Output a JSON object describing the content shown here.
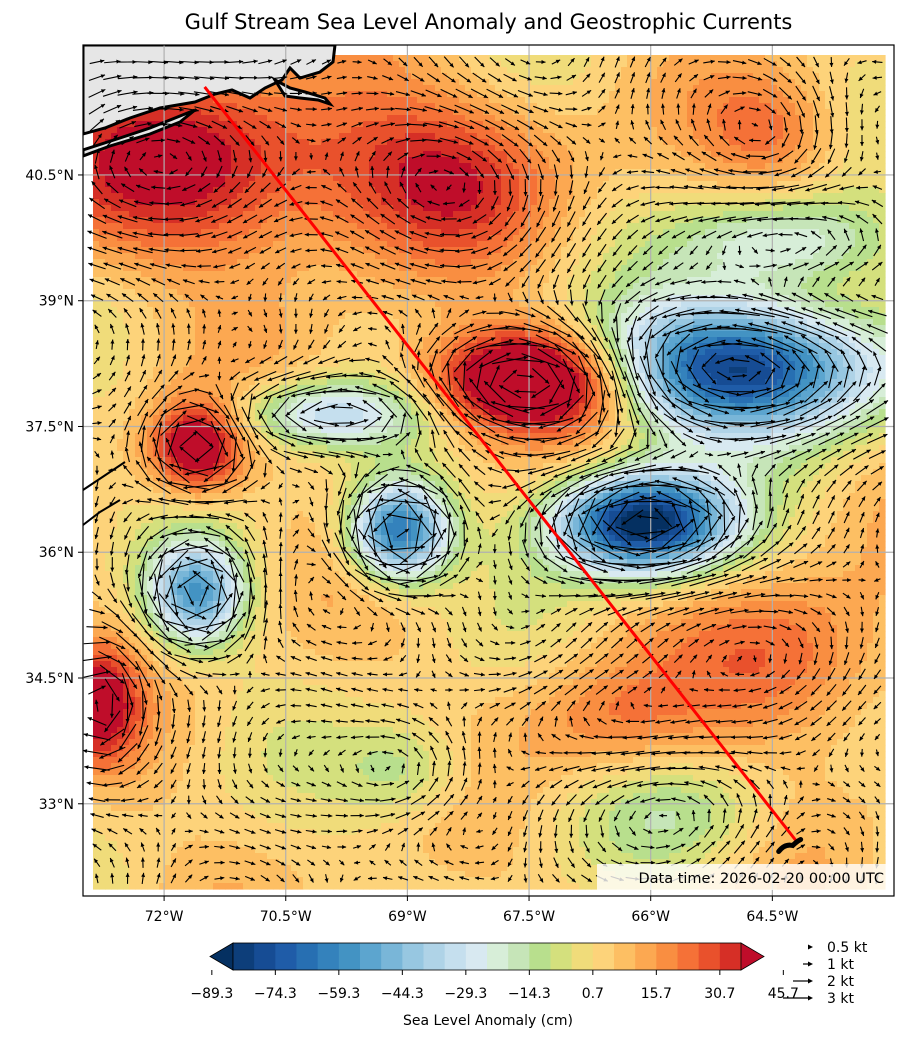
{
  "title": "Gulf Stream Sea Level Anomaly and Geostrophic Currents",
  "data_time": "Data time: 2026-02-20 00:00 UTC",
  "map_extent": {
    "lon_min": -73.0,
    "lon_max": -63.0,
    "lat_min": 31.9,
    "lat_max": 42.05
  },
  "lon_ticks": [
    {
      "value": -72.0,
      "label": "72°W"
    },
    {
      "value": -70.5,
      "label": "70.5°W"
    },
    {
      "value": -69.0,
      "label": "69°W"
    },
    {
      "value": -67.5,
      "label": "67.5°W"
    },
    {
      "value": -66.0,
      "label": "66°W"
    },
    {
      "value": -64.5,
      "label": "64.5°W"
    }
  ],
  "lat_ticks": [
    {
      "value": 40.5,
      "label": "40.5°N"
    },
    {
      "value": 39.0,
      "label": "39°N"
    },
    {
      "value": 37.5,
      "label": "37.5°N"
    },
    {
      "value": 36.0,
      "label": "36°N"
    },
    {
      "value": 34.5,
      "label": "34.5°N"
    },
    {
      "value": 33.0,
      "label": "33°N"
    }
  ],
  "colorbar": {
    "label": "Sea Level Anomaly (cm)",
    "min": -89.3,
    "max": 50.7,
    "step": 5,
    "tick_labels": [
      {
        "value": -89.3,
        "label": "−89.3"
      },
      {
        "value": -74.3,
        "label": "−74.3"
      },
      {
        "value": -59.3,
        "label": "−59.3"
      },
      {
        "value": -44.3,
        "label": "−44.3"
      },
      {
        "value": -29.3,
        "label": "−29.3"
      },
      {
        "value": -14.3,
        "label": "−14.3"
      },
      {
        "value": 0.7,
        "label": "0.7"
      },
      {
        "value": 15.7,
        "label": "15.7"
      },
      {
        "value": 30.7,
        "label": "30.7"
      },
      {
        "value": 45.7,
        "label": "45.7"
      }
    ],
    "colors": [
      "#053061",
      "#0d3e7a",
      "#164c94",
      "#1f5ca8",
      "#276fb2",
      "#3482bc",
      "#4393c3",
      "#5ca5cf",
      "#79b6d8",
      "#97c7e1",
      "#afd3e7",
      "#c5dfee",
      "#d8e9f1",
      "#d7eed8",
      "#c6e5b8",
      "#b8df8d",
      "#d4e07d",
      "#f0dc7a",
      "#fdd37a",
      "#fdbf63",
      "#fca851",
      "#f98e41",
      "#f57137",
      "#e9512c",
      "#d62f26",
      "#bf0d2a"
    ]
  },
  "speed_legend": [
    {
      "speed_kt": 0.5,
      "label": "0.5 kt"
    },
    {
      "speed_kt": 1,
      "label": "1 kt"
    },
    {
      "speed_kt": 2,
      "label": "2 kt"
    },
    {
      "speed_kt": 3,
      "label": "3 kt"
    }
  ],
  "track": {
    "start": {
      "lon": -71.5,
      "lat": 41.55
    },
    "end": {
      "lon": -64.2,
      "lat": 32.55
    },
    "color": "#ff0000"
  },
  "features": [
    {
      "name": "warm-eddy-gulf-stream",
      "lon": -67.5,
      "lat": 38.05,
      "amp": 62,
      "sx": 0.85,
      "sy": 0.42
    },
    {
      "name": "cold-ring-66w",
      "lon": -66.1,
      "lat": 36.35,
      "amp": -95,
      "sx": 0.75,
      "sy": 0.42
    },
    {
      "name": "cold-ring-69w",
      "lon": -69.1,
      "lat": 36.25,
      "amp": -72,
      "sx": 0.42,
      "sy": 0.4
    },
    {
      "name": "cold-ring-71.5w",
      "lon": -71.6,
      "lat": 35.5,
      "amp": -55,
      "sx": 0.4,
      "sy": 0.42
    },
    {
      "name": "warm-eddy-71.5w",
      "lon": -71.6,
      "lat": 37.25,
      "amp": 45,
      "sx": 0.4,
      "sy": 0.38
    },
    {
      "name": "cold-band-65w",
      "lon": -64.9,
      "lat": 38.2,
      "amp": -85,
      "sx": 1.2,
      "sy": 0.55
    },
    {
      "name": "cold-band-70w",
      "lon": -70.0,
      "lat": 37.65,
      "amp": -35,
      "sx": 0.8,
      "sy": 0.28
    },
    {
      "name": "slope-warm",
      "lon": -71.5,
      "lat": 40.6,
      "amp": 34,
      "sx": 1.6,
      "sy": 0.8
    },
    {
      "name": "slope-warm-east",
      "lon": -68.5,
      "lat": 40.5,
      "amp": 24,
      "sx": 1.0,
      "sy": 0.7
    },
    {
      "name": "cold-64w-39.8",
      "lon": -64.3,
      "lat": 39.7,
      "amp": -30,
      "sx": 0.9,
      "sy": 0.4
    },
    {
      "name": "cold-69w-33.3",
      "lon": -69.0,
      "lat": 33.4,
      "amp": -18,
      "sx": 0.6,
      "sy": 0.45
    },
    {
      "name": "warm-72.8w-34.1",
      "lon": -72.8,
      "lat": 34.2,
      "amp": 36,
      "sx": 0.35,
      "sy": 0.5
    },
    {
      "name": "warm-64w-34.7",
      "lon": -64.2,
      "lat": 34.7,
      "amp": 22,
      "sx": 0.9,
      "sy": 0.7
    },
    {
      "name": "warm-66w-34",
      "lon": -66.5,
      "lat": 34.0,
      "amp": 16,
      "sx": 0.8,
      "sy": 0.5
    },
    {
      "name": "cold-66w-33",
      "lon": -65.5,
      "lat": 32.9,
      "amp": -14,
      "sx": 0.8,
      "sy": 0.5
    },
    {
      "name": "warm-64w-41",
      "lon": -64.5,
      "lat": 41.0,
      "amp": 18,
      "sx": 0.6,
      "sy": 0.5
    }
  ]
}
